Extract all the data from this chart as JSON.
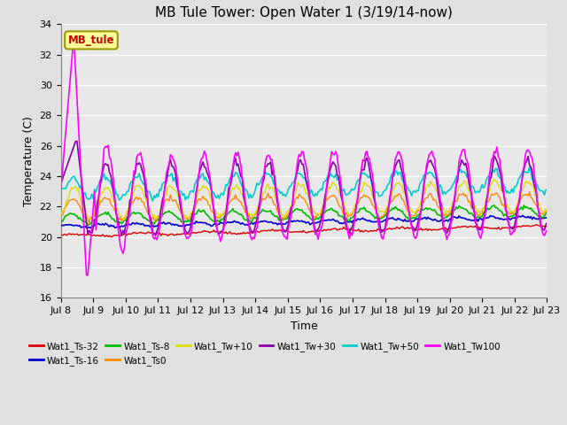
{
  "title": "MB Tule Tower: Open Water 1 (3/19/14-now)",
  "xlabel": "Time",
  "ylabel": "Temperature (C)",
  "ylim": [
    16,
    34
  ],
  "yticks": [
    16,
    18,
    20,
    22,
    24,
    26,
    28,
    30,
    32,
    34
  ],
  "xlim_start": 0,
  "xlim_end": 15,
  "xtick_labels": [
    "Jul 8",
    "Jul 9",
    "Jul 10",
    "Jul 11",
    "Jul 12",
    "Jul 13",
    "Jul 14",
    "Jul 15",
    "Jul 16",
    "Jul 17",
    "Jul 18",
    "Jul 19",
    "Jul 20",
    "Jul 21",
    "Jul 22",
    "Jul 23"
  ],
  "legend_label": "MB_tule",
  "series": {
    "Wat1_Ts-32": {
      "color": "#dd0000",
      "linewidth": 1.0
    },
    "Wat1_Ts-16": {
      "color": "#0000cc",
      "linewidth": 1.2
    },
    "Wat1_Ts-8": {
      "color": "#00bb00",
      "linewidth": 1.2
    },
    "Wat1_Ts0": {
      "color": "#ff8800",
      "linewidth": 1.0
    },
    "Wat1_Tw+10": {
      "color": "#dddd00",
      "linewidth": 1.0
    },
    "Wat1_Tw+30": {
      "color": "#8800aa",
      "linewidth": 1.2
    },
    "Wat1_Tw+50": {
      "color": "#00cccc",
      "linewidth": 1.2
    },
    "Wat1_Tw100": {
      "color": "#ff00ff",
      "linewidth": 1.2
    }
  },
  "bg_color": "#e0e0e0",
  "plot_bg_color": "#e8e8e8",
  "grid_color": "#ffffff",
  "title_fontsize": 11,
  "axis_fontsize": 9,
  "tick_fontsize": 8
}
